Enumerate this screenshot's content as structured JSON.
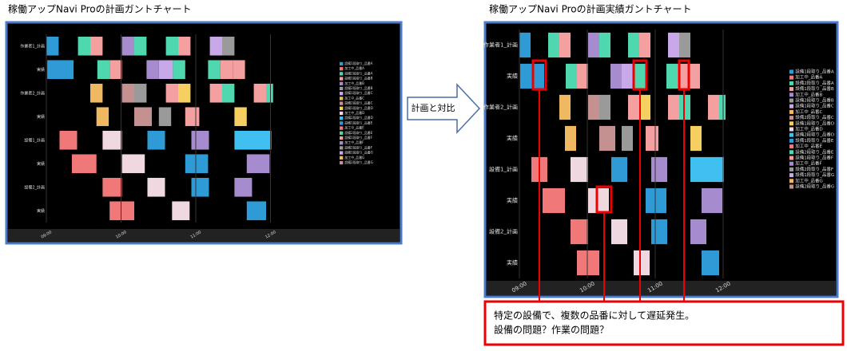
{
  "left_title": "稼働アップNavi Proの計画ガントチャート",
  "right_title": "稼働アップNavi Proの計画実績ガントチャート",
  "arrow_label": "計画と対比",
  "rows": [
    "作業者1_計画",
    "実績",
    "作業者2_計画",
    "実績",
    "設備1_計画",
    "実績",
    "設備2_計画",
    "実績"
  ],
  "time_ticks": [
    "09:00",
    "10:00",
    "11:00",
    "12:00"
  ],
  "legend": [
    "設備1段取り_品番A",
    "加工中_品番A",
    "設備2段取り_品番A",
    "設備1段取り_品番B",
    "加工中_品番B",
    "設備2段取り_品番B",
    "設備1段取り_品番C",
    "加工中_品番C",
    "設備2段取り_品番C",
    "設備1段取り_品番D",
    "加工中_品番D",
    "設備2段取り_品番D",
    "設備1段取り_品番E",
    "加工中_品番E",
    "設備2段取り_品番E",
    "設備1段取り_品番F",
    "加工中_品番F",
    "設備2段取り_品番F",
    "設備1段取り_品番G",
    "加工中_品番G",
    "設備2段取り_品番G"
  ],
  "callout": [
    "特定の設備で、複数の品番に対して遅延発生。",
    "設備の問題？作業の問題？"
  ]
}
